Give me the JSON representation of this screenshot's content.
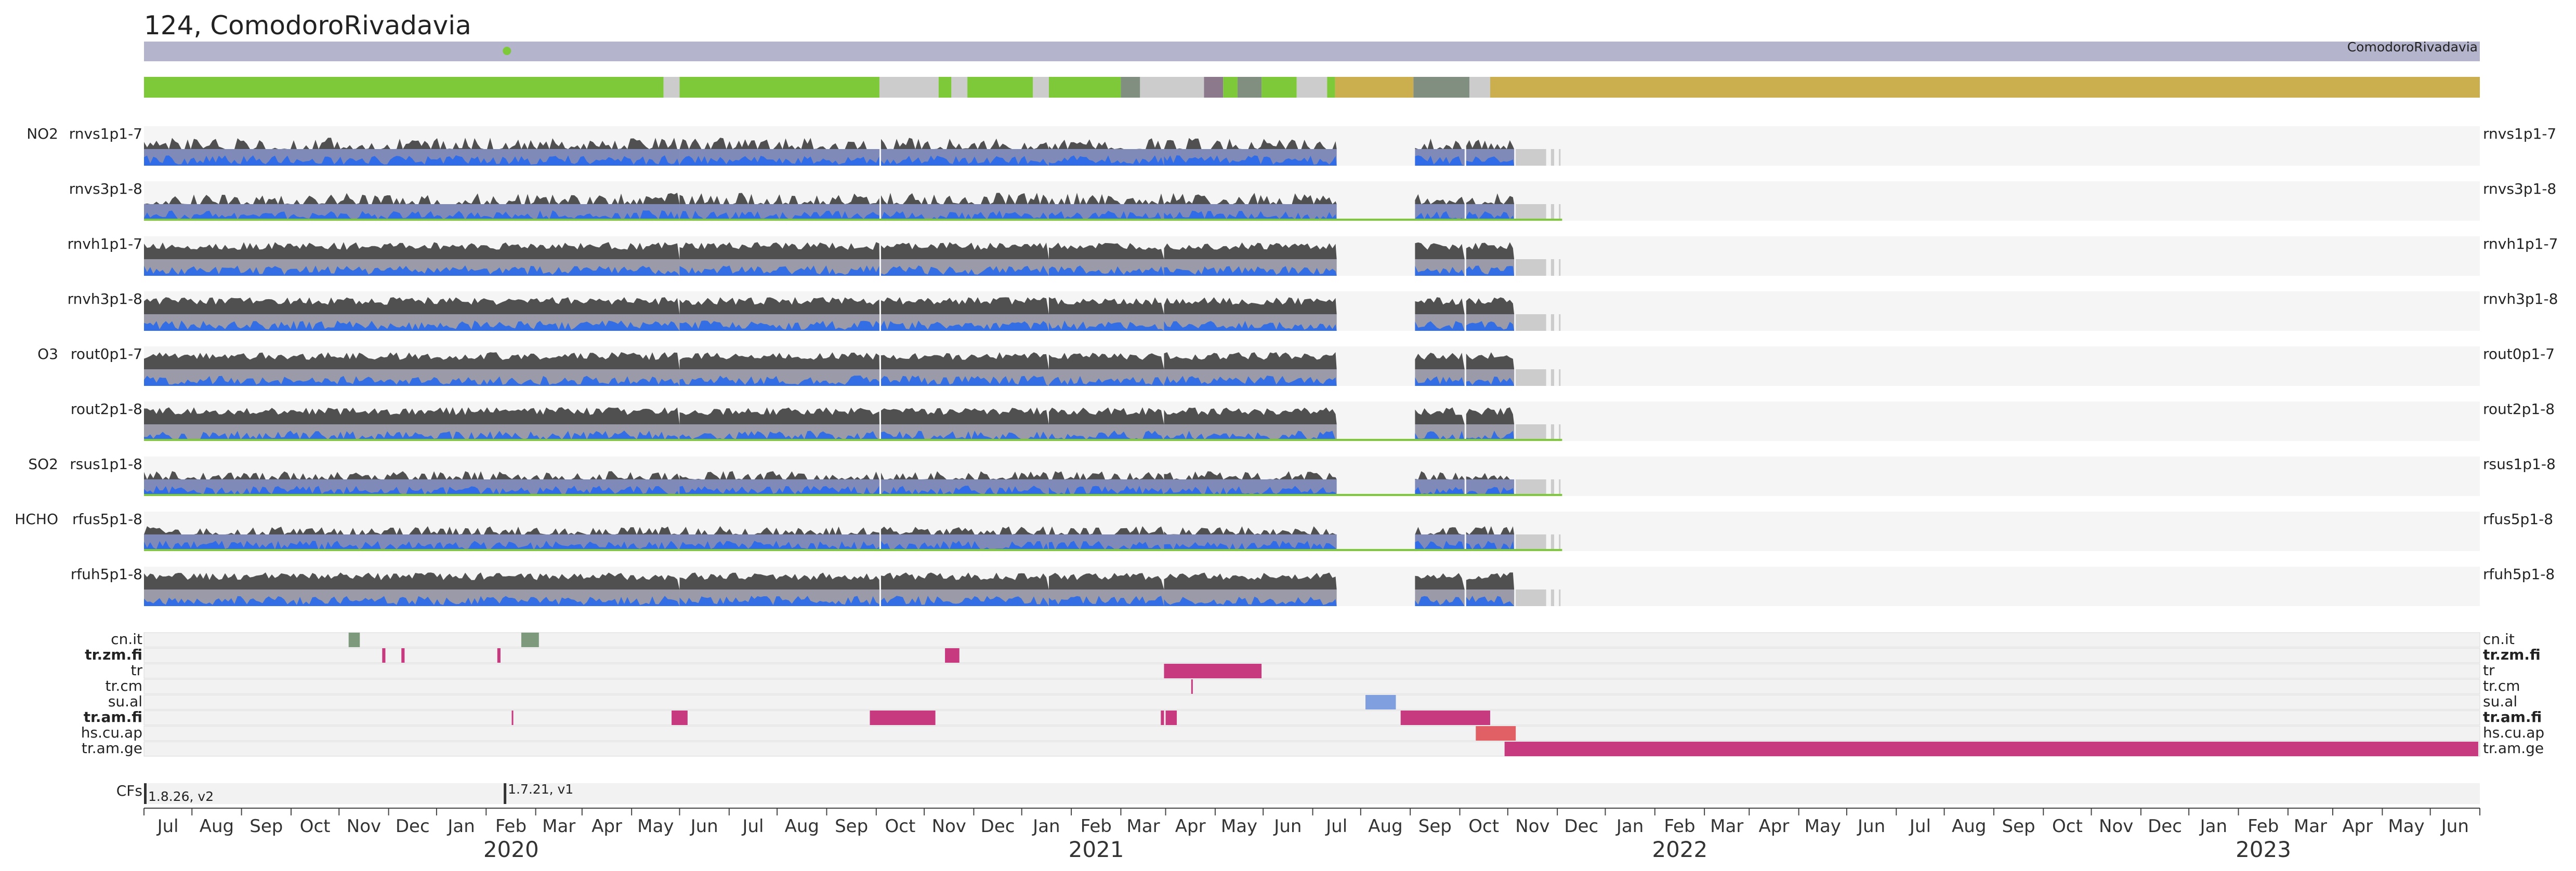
{
  "chart_data": {
    "type": "timeline",
    "title": "124, ComodoroRivadavia",
    "station_label": "ComodoroRivadavia",
    "x_range": [
      "2019-06-01",
      "2023-06-01"
    ],
    "month_ticks": [
      "Jul",
      "Aug",
      "Sep",
      "Oct",
      "Nov",
      "Dec",
      "Jan",
      "Feb",
      "Mar",
      "Apr",
      "May",
      "Jun",
      "Jul",
      "Aug",
      "Sep",
      "Oct",
      "Nov",
      "Dec",
      "Jan",
      "Feb",
      "Mar",
      "Apr",
      "May",
      "Jun",
      "Jul",
      "Aug",
      "Sep",
      "Oct",
      "Nov",
      "Dec",
      "Jan",
      "Feb",
      "Mar",
      "Apr",
      "May",
      "Jun",
      "Jul",
      "Aug",
      "Sep",
      "Oct",
      "Nov",
      "Dec",
      "Jan",
      "Feb",
      "Mar",
      "Apr",
      "May",
      "Jun"
    ],
    "years": [
      {
        "label": "2020",
        "date": "2020-01-01"
      },
      {
        "label": "2021",
        "date": "2021-01-01"
      },
      {
        "label": "2022",
        "date": "2022-01-01"
      },
      {
        "label": "2023",
        "date": "2023-01-01"
      }
    ],
    "marker_date": "2020-01-14",
    "status_strip": [
      {
        "start": "2019-06-01",
        "end": "2020-04-21",
        "state": "green"
      },
      {
        "start": "2020-04-21",
        "end": "2020-05-01",
        "state": "gray"
      },
      {
        "start": "2020-05-01",
        "end": "2020-09-03",
        "state": "green"
      },
      {
        "start": "2020-09-03",
        "end": "2020-10-10",
        "state": "gray"
      },
      {
        "start": "2020-10-10",
        "end": "2020-10-18",
        "state": "green"
      },
      {
        "start": "2020-10-18",
        "end": "2020-10-28",
        "state": "gray"
      },
      {
        "start": "2020-10-28",
        "end": "2020-12-08",
        "state": "green"
      },
      {
        "start": "2020-12-08",
        "end": "2020-12-18",
        "state": "gray"
      },
      {
        "start": "2020-12-18",
        "end": "2021-02-01",
        "state": "green"
      },
      {
        "start": "2021-02-01",
        "end": "2021-02-13",
        "state": "slate"
      },
      {
        "start": "2021-02-13",
        "end": "2021-03-25",
        "state": "gray"
      },
      {
        "start": "2021-03-25",
        "end": "2021-04-06",
        "state": "mauve"
      },
      {
        "start": "2021-04-06",
        "end": "2021-04-15",
        "state": "green"
      },
      {
        "start": "2021-04-15",
        "end": "2021-04-30",
        "state": "slate"
      },
      {
        "start": "2021-04-30",
        "end": "2021-05-22",
        "state": "green"
      },
      {
        "start": "2021-05-22",
        "end": "2021-06-10",
        "state": "gray"
      },
      {
        "start": "2021-06-10",
        "end": "2021-06-15",
        "state": "green"
      },
      {
        "start": "2021-06-15",
        "end": "2021-08-03",
        "state": "gold"
      },
      {
        "start": "2021-08-03",
        "end": "2021-09-07",
        "state": "slate"
      },
      {
        "start": "2021-09-07",
        "end": "2021-09-20",
        "state": "gray"
      },
      {
        "start": "2021-09-20",
        "end": "2023-06-01",
        "state": "gold"
      }
    ],
    "series_rows": [
      {
        "group": "NO2",
        "name": "rnvs1p1-7",
        "style": "no2",
        "end": "2021-10-05",
        "baseline": false
      },
      {
        "group": "",
        "name": "rnvs3p1-8",
        "style": "no2",
        "end": "2021-11-04",
        "baseline": true
      },
      {
        "group": "",
        "name": "rnvh1p1-7",
        "style": "full",
        "end": "2021-10-05",
        "baseline": false
      },
      {
        "group": "",
        "name": "rnvh3p1-8",
        "style": "full",
        "end": "2021-10-05",
        "baseline": false
      },
      {
        "group": "O3",
        "name": "rout0p1-7",
        "style": "full",
        "end": "2021-10-05",
        "baseline": false
      },
      {
        "group": "",
        "name": "rout2p1-8",
        "style": "full",
        "end": "2021-11-04",
        "baseline": true
      },
      {
        "group": "SO2",
        "name": "rsus1p1-8",
        "style": "low",
        "end": "2021-11-04",
        "baseline": true
      },
      {
        "group": "HCHO",
        "name": "rfus5p1-8",
        "style": "low",
        "end": "2021-11-04",
        "baseline": true
      },
      {
        "group": "",
        "name": "rfuh5p1-8",
        "style": "full",
        "end": "2021-10-05",
        "baseline": false
      }
    ],
    "events": [
      {
        "name": "cn.it",
        "bold": false,
        "spans": [
          {
            "start": "2019-10-07",
            "end": "2019-10-14",
            "color": "#7d9a7d"
          },
          {
            "start": "2020-01-23",
            "end": "2020-02-03",
            "color": "#7d9a7d"
          }
        ]
      },
      {
        "name": "tr.zm.fi",
        "bold": true,
        "spans": [
          {
            "start": "2019-10-28",
            "end": "2019-10-30",
            "color": "#c83a80"
          },
          {
            "start": "2019-11-09",
            "end": "2019-11-11",
            "color": "#c83a80"
          },
          {
            "start": "2020-01-08",
            "end": "2020-01-10",
            "color": "#c83a80"
          },
          {
            "start": "2020-10-14",
            "end": "2020-10-23",
            "color": "#c83a80"
          }
        ]
      },
      {
        "name": "tr",
        "bold": false,
        "spans": [
          {
            "start": "2021-02-28",
            "end": "2021-04-30",
            "color": "#c83a80"
          }
        ]
      },
      {
        "name": "tr.cm",
        "bold": false,
        "spans": [
          {
            "start": "2021-03-17",
            "end": "2021-03-18",
            "color": "#c83a80"
          }
        ]
      },
      {
        "name": "su.al",
        "bold": false,
        "spans": [
          {
            "start": "2021-07-04",
            "end": "2021-07-23",
            "color": "#7f9fdf"
          }
        ]
      },
      {
        "name": "tr.am.fi",
        "bold": true,
        "spans": [
          {
            "start": "2020-01-17",
            "end": "2020-01-18",
            "color": "#c83a80"
          },
          {
            "start": "2020-04-26",
            "end": "2020-05-06",
            "color": "#c83a80"
          },
          {
            "start": "2020-08-28",
            "end": "2020-10-08",
            "color": "#c83a80"
          },
          {
            "start": "2021-02-26",
            "end": "2021-02-28",
            "color": "#c83a80"
          },
          {
            "start": "2021-03-01",
            "end": "2021-03-08",
            "color": "#c83a80"
          },
          {
            "start": "2021-07-26",
            "end": "2021-09-20",
            "color": "#c83a80"
          }
        ]
      },
      {
        "name": "hs.cu.ap",
        "bold": false,
        "spans": [
          {
            "start": "2021-09-11",
            "end": "2021-10-06",
            "color": "#e06065"
          }
        ]
      },
      {
        "name": "tr.am.ge",
        "bold": false,
        "spans": [
          {
            "start": "2021-09-29",
            "end": "2023-05-31",
            "color": "#c83a80"
          }
        ]
      }
    ],
    "cfs": {
      "label": "CFs",
      "versions": [
        {
          "label": "1.8.26, v2",
          "date": "2019-06-01"
        },
        {
          "label": "1.7.21, v1",
          "date": "2020-01-12"
        }
      ]
    },
    "colors": {
      "green": "#7ec93a",
      "gray": "#cccccc",
      "slate": "#808f80",
      "mauve": "#8c7a8c",
      "gold": "#cbaf4f",
      "header_bar": "#b4b4cc",
      "row_bg": "#f5f5f5",
      "dark": "#505050",
      "blue": "#2266ee",
      "mid": "#9a9aa8",
      "baseline": "#7ec93a",
      "event_bg": "#f2f2f2"
    }
  }
}
